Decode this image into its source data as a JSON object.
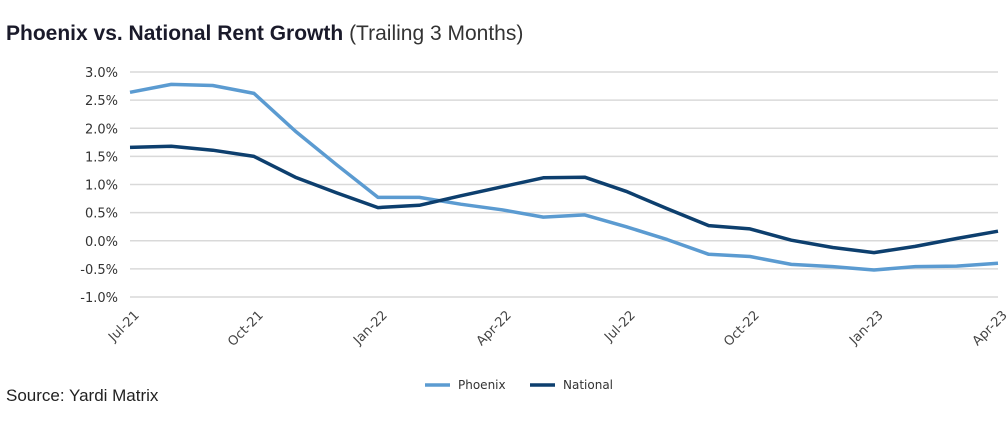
{
  "title": {
    "main": "Phoenix vs. National Rent Growth",
    "sub": "(Trailing 3 Months)"
  },
  "source": "Source: Yardi Matrix",
  "chart_data": {
    "type": "line",
    "title": "Phoenix vs. National Rent Growth (Trailing 3 Months)",
    "xlabel": "",
    "ylabel": "",
    "x": [
      "Jul-21",
      "Aug-21",
      "Sep-21",
      "Oct-21",
      "Nov-21",
      "Dec-21",
      "Jan-22",
      "Feb-22",
      "Mar-22",
      "Apr-22",
      "May-22",
      "Jun-22",
      "Jul-22",
      "Aug-22",
      "Sep-22",
      "Oct-22",
      "Nov-22",
      "Dec-22",
      "Jan-23",
      "Feb-23",
      "Mar-23",
      "Apr-23"
    ],
    "x_tick_labels": [
      "Jul-21",
      "Oct-21",
      "Jan-22",
      "Apr-22",
      "Jul-22",
      "Oct-22",
      "Jan-23",
      "Apr-23"
    ],
    "y_tick_labels": [
      "3.0%",
      "2.5%",
      "2.0%",
      "1.5%",
      "1.0%",
      "0.5%",
      "0.0%",
      "-0.5%",
      "-1.0%"
    ],
    "ylim": [
      -1.0,
      3.0
    ],
    "grid": true,
    "legend_position": "bottom-center",
    "series": [
      {
        "name": "Phoenix",
        "color": "#5b9bd1",
        "values": [
          2.64,
          2.78,
          2.76,
          2.62,
          1.95,
          1.35,
          0.77,
          0.77,
          0.65,
          0.55,
          0.42,
          0.46,
          0.25,
          0.02,
          -0.24,
          -0.28,
          -0.42,
          -0.46,
          -0.52,
          -0.46,
          -0.45,
          -0.4
        ]
      },
      {
        "name": "National",
        "color": "#0d3f6e",
        "values": [
          1.66,
          1.68,
          1.61,
          1.5,
          1.13,
          0.85,
          0.59,
          0.63,
          0.8,
          0.96,
          1.12,
          1.13,
          0.88,
          0.57,
          0.27,
          0.21,
          0.01,
          -0.12,
          -0.21,
          -0.1,
          0.04,
          0.17
        ]
      }
    ]
  }
}
